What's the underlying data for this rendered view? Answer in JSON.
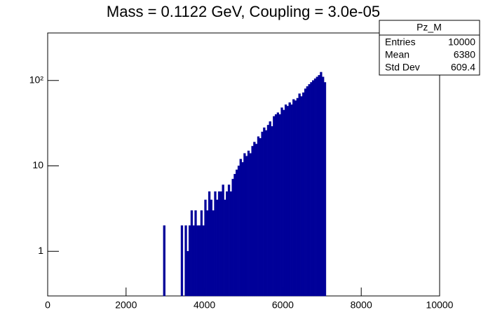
{
  "chart_data": {
    "type": "histogram",
    "title": "Mass = 0.1122 GeV, Coupling = 3.0e-05",
    "bins": [
      2900,
      2950,
      3000,
      3050,
      3100,
      3150,
      3200,
      3250,
      3300,
      3350,
      3400,
      3450,
      3500,
      3550,
      3600,
      3650,
      3700,
      3750,
      3800,
      3850,
      3900,
      3950,
      4000,
      4050,
      4100,
      4150,
      4200,
      4250,
      4300,
      4350,
      4400,
      4450,
      4500,
      4550,
      4600,
      4650,
      4700,
      4750,
      4800,
      4850,
      4900,
      4950,
      5000,
      5050,
      5100,
      5150,
      5200,
      5250,
      5300,
      5350,
      5400,
      5450,
      5500,
      5550,
      5600,
      5650,
      5700,
      5750,
      5800,
      5850,
      5900,
      5950,
      6000,
      6050,
      6100,
      6150,
      6200,
      6250,
      6300,
      6350,
      6400,
      6450,
      6500,
      6550,
      6600,
      6650,
      6700,
      6750,
      6800,
      6850,
      6900,
      6950,
      7000,
      7050,
      7100
    ],
    "values": [
      0,
      2,
      0,
      0,
      0,
      0,
      0,
      0,
      0,
      0,
      2,
      0,
      2,
      1,
      2,
      3,
      2,
      3,
      2,
      2,
      3,
      2,
      4,
      3,
      5,
      4,
      3,
      5,
      4,
      5,
      5,
      6,
      4,
      5,
      6,
      5,
      7,
      8,
      9,
      10,
      12,
      11,
      14,
      13,
      15,
      14,
      17,
      19,
      18,
      22,
      21,
      25,
      28,
      26,
      30,
      33,
      29,
      38,
      40,
      42,
      40,
      48,
      45,
      52,
      50,
      55,
      52,
      60,
      58,
      62,
      70,
      65,
      72,
      80,
      85,
      90,
      95,
      100,
      105,
      110,
      115,
      125,
      110,
      95
    ],
    "color": "#000099",
    "xlim": [
      0,
      10000
    ],
    "xticks": [
      0,
      2000,
      4000,
      6000,
      8000,
      10000
    ],
    "ylim": [
      0.3,
      360
    ],
    "yticks": [
      1,
      10,
      {
        "value": 100,
        "label": "10²"
      }
    ],
    "log_y": true,
    "stats": {
      "title": "Pz_M",
      "rows": [
        [
          "Entries",
          "10000"
        ],
        [
          "Mean",
          "6380"
        ],
        [
          "Std Dev",
          "609.4"
        ]
      ]
    }
  }
}
